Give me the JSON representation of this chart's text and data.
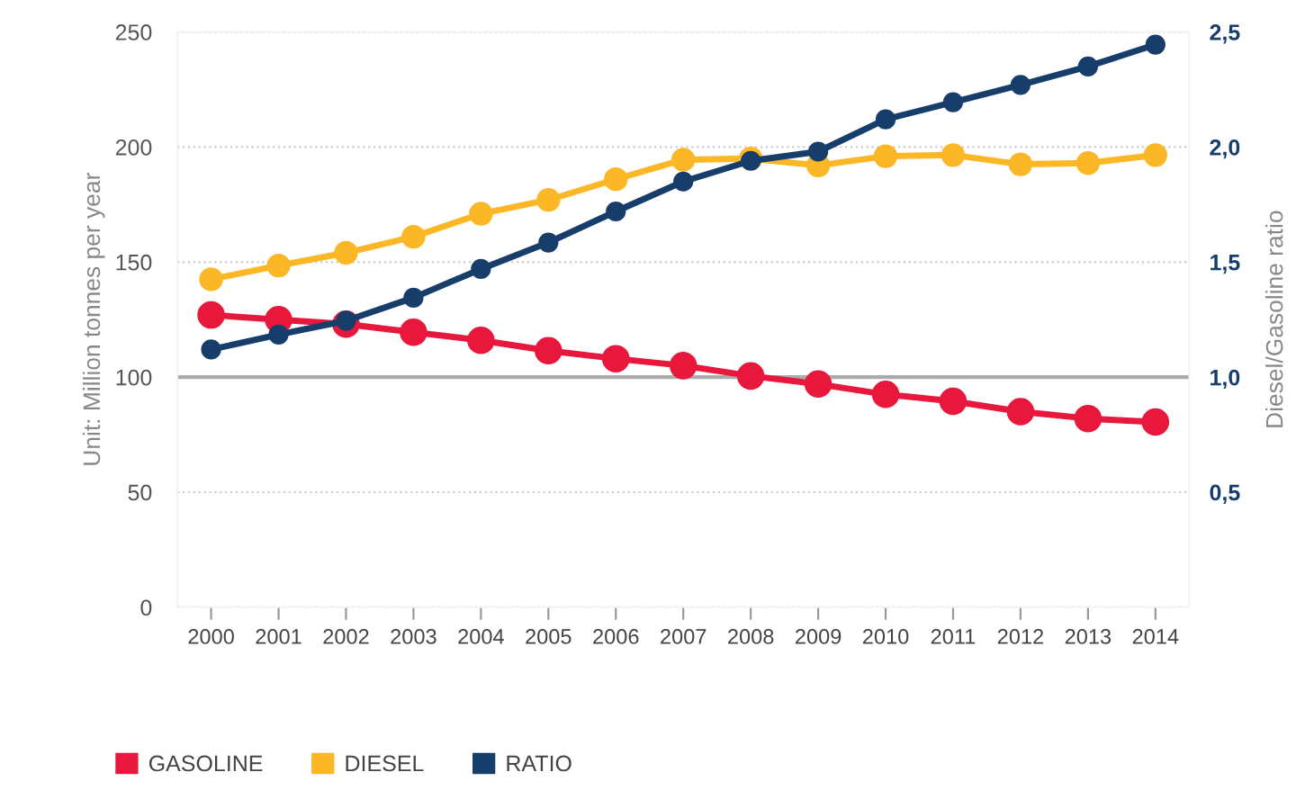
{
  "chart_data": {
    "type": "line",
    "ylabel": "Unit: Million tonnes per year",
    "y2label": "Diesel/Gasoline ratio",
    "categories": [
      "2000",
      "2001",
      "2002",
      "2003",
      "2004",
      "2005",
      "2006",
      "2007",
      "2008",
      "2009",
      "2010",
      "2011",
      "2012",
      "2013",
      "2014"
    ],
    "series": [
      {
        "name": "GASOLINE",
        "color": "#e8173c",
        "values": [
          127,
          125,
          123,
          119.5,
          116,
          111.5,
          108,
          105,
          100.5,
          97,
          92.5,
          89.5,
          85,
          82,
          80.5
        ]
      },
      {
        "name": "DIESEL",
        "color": "#fbb726",
        "values": [
          142.5,
          148.5,
          154,
          161,
          171,
          177,
          186,
          194.5,
          195,
          192,
          196,
          196.5,
          192.5,
          193,
          196.5
        ]
      },
      {
        "name": "RATIO",
        "color": "#173e6b",
        "axis": "y2",
        "values": [
          1.12,
          1.185,
          1.245,
          1.345,
          1.47,
          1.585,
          1.72,
          1.85,
          1.94,
          1.98,
          2.12,
          2.195,
          2.27,
          2.35,
          2.445
        ]
      }
    ],
    "ylim": [
      0,
      250
    ],
    "yticks": [
      0,
      50,
      100,
      150,
      200,
      250
    ],
    "y2lim": [
      0,
      2.5
    ],
    "y2ticks": [
      {
        "value": 0,
        "label": null
      },
      {
        "value": 0.5,
        "label": "0,5"
      },
      {
        "value": 1,
        "label": "1,0"
      },
      {
        "value": 1.5,
        "label": "1,5"
      },
      {
        "value": 2,
        "label": "2,0"
      },
      {
        "value": 2.5,
        "label": "2,5"
      }
    ],
    "ref_lines": [
      {
        "axis": "y",
        "value": 100,
        "color": "#aaaaaa",
        "line_style": "solid"
      }
    ],
    "grid": "y",
    "legend": "bottom left",
    "marker": "circle",
    "line_style": "solid"
  }
}
